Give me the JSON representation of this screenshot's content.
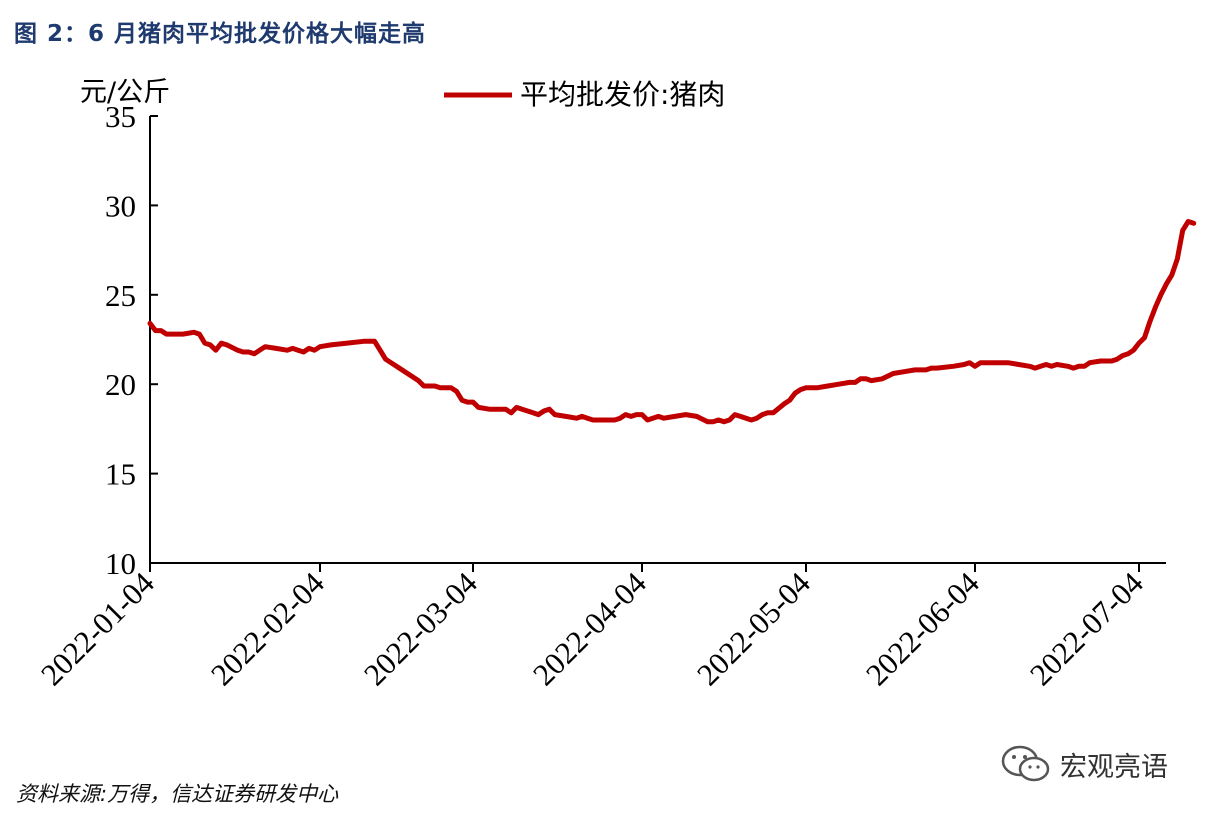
{
  "figure": {
    "title": "图 2：6 月猪肉平均批发价格大幅走高",
    "source": "资料来源:万得，信达证券研发中心",
    "watermark": "宏观亮语",
    "watermark_icon": "wechat-icon"
  },
  "chart_data": {
    "type": "line",
    "title": "",
    "ylabel": "元/公斤",
    "xlabel": "",
    "ylim": [
      10,
      35
    ],
    "yticks": [
      10,
      15,
      20,
      25,
      30,
      35
    ],
    "xticks": [
      "2022-01-04",
      "2022-02-04",
      "2022-03-04",
      "2022-04-04",
      "2022-05-04",
      "2022-06-04",
      "2022-07-04"
    ],
    "xlim": [
      "2022-01-04",
      "2022-07-08"
    ],
    "grid": false,
    "legend_position": "top",
    "series": [
      {
        "name": "平均批发价:猪肉",
        "color": "#c00000",
        "points": [
          [
            "2022-01-04",
            23.4
          ],
          [
            "2022-01-05",
            23.0
          ],
          [
            "2022-01-06",
            23.0
          ],
          [
            "2022-01-07",
            22.8
          ],
          [
            "2022-01-10",
            22.8
          ],
          [
            "2022-01-12",
            22.9
          ],
          [
            "2022-01-13",
            22.8
          ],
          [
            "2022-01-14",
            22.3
          ],
          [
            "2022-01-15",
            22.2
          ],
          [
            "2022-01-16",
            21.9
          ],
          [
            "2022-01-17",
            22.3
          ],
          [
            "2022-01-18",
            22.2
          ],
          [
            "2022-01-20",
            21.9
          ],
          [
            "2022-01-21",
            21.8
          ],
          [
            "2022-01-22",
            21.8
          ],
          [
            "2022-01-23",
            21.7
          ],
          [
            "2022-01-24",
            21.9
          ],
          [
            "2022-01-25",
            22.1
          ],
          [
            "2022-01-27",
            22.0
          ],
          [
            "2022-01-29",
            21.9
          ],
          [
            "2022-01-30",
            22.0
          ],
          [
            "2022-01-31",
            21.9
          ],
          [
            "2022-02-01",
            21.8
          ],
          [
            "2022-02-02",
            22.0
          ],
          [
            "2022-02-03",
            21.9
          ],
          [
            "2022-02-04",
            22.1
          ],
          [
            "2022-02-06",
            22.2
          ],
          [
            "2022-02-09",
            22.3
          ],
          [
            "2022-02-12",
            22.4
          ],
          [
            "2022-02-14",
            22.4
          ],
          [
            "2022-02-15",
            21.9
          ],
          [
            "2022-02-16",
            21.4
          ],
          [
            "2022-02-17",
            21.2
          ],
          [
            "2022-02-19",
            20.8
          ],
          [
            "2022-02-22",
            20.2
          ],
          [
            "2022-02-23",
            19.9
          ],
          [
            "2022-02-25",
            19.9
          ],
          [
            "2022-02-26",
            19.8
          ],
          [
            "2022-02-28",
            19.8
          ],
          [
            "2022-03-01",
            19.6
          ],
          [
            "2022-03-02",
            19.1
          ],
          [
            "2022-03-03",
            19.0
          ],
          [
            "2022-03-04",
            19.0
          ],
          [
            "2022-03-05",
            18.7
          ],
          [
            "2022-03-07",
            18.6
          ],
          [
            "2022-03-09",
            18.6
          ],
          [
            "2022-03-10",
            18.6
          ],
          [
            "2022-03-11",
            18.4
          ],
          [
            "2022-03-12",
            18.7
          ],
          [
            "2022-03-13",
            18.6
          ],
          [
            "2022-03-15",
            18.4
          ],
          [
            "2022-03-16",
            18.3
          ],
          [
            "2022-03-17",
            18.5
          ],
          [
            "2022-03-18",
            18.6
          ],
          [
            "2022-03-19",
            18.3
          ],
          [
            "2022-03-21",
            18.2
          ],
          [
            "2022-03-23",
            18.1
          ],
          [
            "2022-03-24",
            18.2
          ],
          [
            "2022-03-25",
            18.1
          ],
          [
            "2022-03-26",
            18.0
          ],
          [
            "2022-03-28",
            18.0
          ],
          [
            "2022-03-30",
            18.0
          ],
          [
            "2022-03-31",
            18.1
          ],
          [
            "2022-04-01",
            18.3
          ],
          [
            "2022-04-02",
            18.2
          ],
          [
            "2022-04-03",
            18.3
          ],
          [
            "2022-04-04",
            18.3
          ],
          [
            "2022-04-05",
            18.0
          ],
          [
            "2022-04-07",
            18.2
          ],
          [
            "2022-04-08",
            18.1
          ],
          [
            "2022-04-10",
            18.2
          ],
          [
            "2022-04-12",
            18.3
          ],
          [
            "2022-04-14",
            18.2
          ],
          [
            "2022-04-16",
            17.9
          ],
          [
            "2022-04-17",
            17.9
          ],
          [
            "2022-04-18",
            18.0
          ],
          [
            "2022-04-19",
            17.9
          ],
          [
            "2022-04-20",
            18.0
          ],
          [
            "2022-04-21",
            18.3
          ],
          [
            "2022-04-22",
            18.2
          ],
          [
            "2022-04-24",
            18.0
          ],
          [
            "2022-04-25",
            18.1
          ],
          [
            "2022-04-26",
            18.3
          ],
          [
            "2022-04-27",
            18.4
          ],
          [
            "2022-04-28",
            18.4
          ],
          [
            "2022-04-30",
            18.9
          ],
          [
            "2022-05-01",
            19.1
          ],
          [
            "2022-05-02",
            19.5
          ],
          [
            "2022-05-03",
            19.7
          ],
          [
            "2022-05-04",
            19.8
          ],
          [
            "2022-05-06",
            19.8
          ],
          [
            "2022-05-08",
            19.9
          ],
          [
            "2022-05-10",
            20.0
          ],
          [
            "2022-05-12",
            20.1
          ],
          [
            "2022-05-13",
            20.1
          ],
          [
            "2022-05-14",
            20.3
          ],
          [
            "2022-05-15",
            20.3
          ],
          [
            "2022-05-16",
            20.2
          ],
          [
            "2022-05-18",
            20.3
          ],
          [
            "2022-05-20",
            20.6
          ],
          [
            "2022-05-22",
            20.7
          ],
          [
            "2022-05-24",
            20.8
          ],
          [
            "2022-05-26",
            20.8
          ],
          [
            "2022-05-27",
            20.9
          ],
          [
            "2022-05-28",
            20.9
          ],
          [
            "2022-05-31",
            21.0
          ],
          [
            "2022-06-02",
            21.1
          ],
          [
            "2022-06-03",
            21.2
          ],
          [
            "2022-06-04",
            21.0
          ],
          [
            "2022-06-05",
            21.2
          ],
          [
            "2022-06-08",
            21.2
          ],
          [
            "2022-06-10",
            21.2
          ],
          [
            "2022-06-12",
            21.1
          ],
          [
            "2022-06-14",
            21.0
          ],
          [
            "2022-06-15",
            20.9
          ],
          [
            "2022-06-16",
            21.0
          ],
          [
            "2022-06-17",
            21.1
          ],
          [
            "2022-06-18",
            21.0
          ],
          [
            "2022-06-19",
            21.1
          ],
          [
            "2022-06-21",
            21.0
          ],
          [
            "2022-06-22",
            20.9
          ],
          [
            "2022-06-23",
            21.0
          ],
          [
            "2022-06-24",
            21.0
          ],
          [
            "2022-06-25",
            21.2
          ],
          [
            "2022-06-27",
            21.3
          ],
          [
            "2022-06-29",
            21.3
          ],
          [
            "2022-06-30",
            21.4
          ],
          [
            "2022-07-01",
            21.6
          ],
          [
            "2022-07-02",
            21.7
          ],
          [
            "2022-07-03",
            21.9
          ],
          [
            "2022-07-04",
            22.3
          ],
          [
            "2022-07-05",
            22.6
          ],
          [
            "2022-07-06",
            23.5
          ],
          [
            "2022-07-07",
            24.3
          ],
          [
            "2022-07-08",
            25.0
          ],
          [
            "2022-07-09",
            25.6
          ],
          [
            "2022-07-10",
            26.1
          ],
          [
            "2022-07-11",
            27.0
          ],
          [
            "2022-07-12",
            28.6
          ],
          [
            "2022-07-13",
            29.1
          ],
          [
            "2022-07-14",
            29.0
          ]
        ]
      }
    ]
  }
}
